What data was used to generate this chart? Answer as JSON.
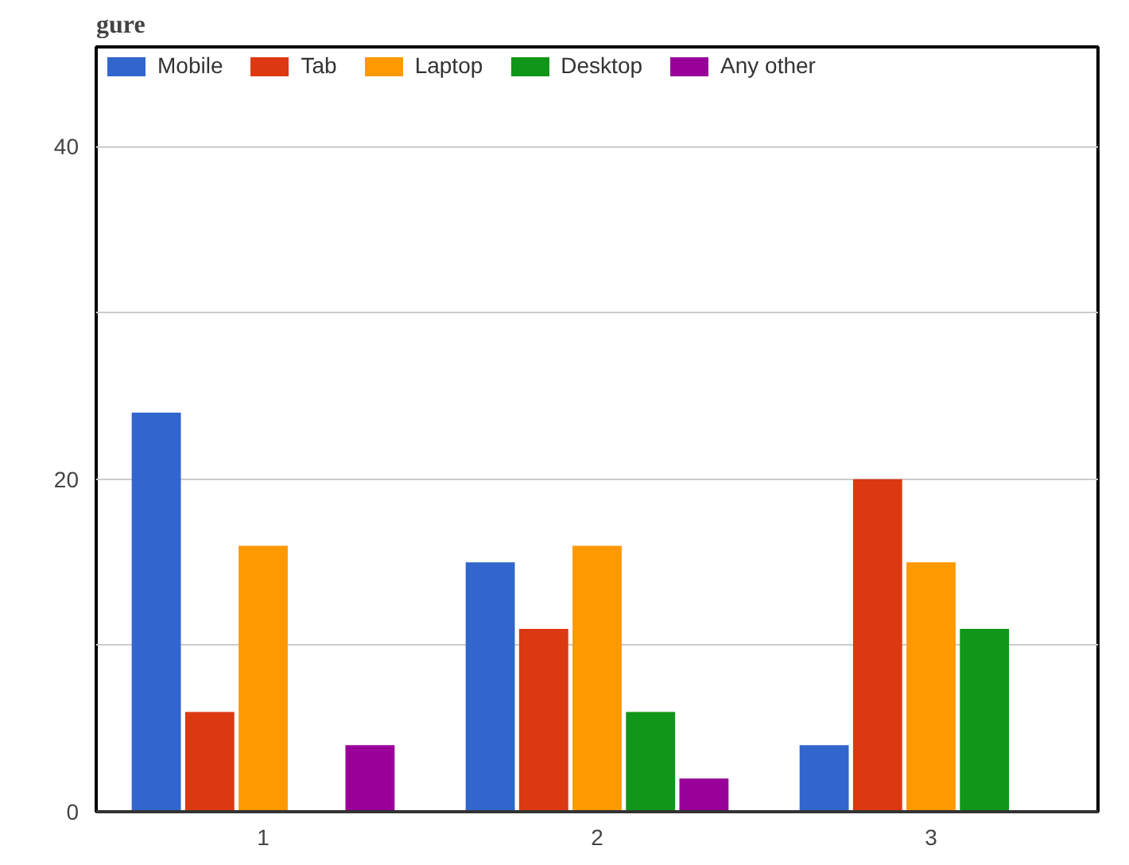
{
  "chart_data": {
    "type": "bar",
    "annotations": [
      "gure"
    ],
    "categories": [
      "1",
      "2",
      "3"
    ],
    "series": [
      {
        "name": "Mobile",
        "color": "#3366cc",
        "values": [
          24,
          15,
          4
        ]
      },
      {
        "name": "Tab",
        "color": "#dc3912",
        "values": [
          6,
          11,
          20
        ]
      },
      {
        "name": "Laptop",
        "color": "#ff9900",
        "values": [
          16,
          16,
          15
        ]
      },
      {
        "name": "Desktop",
        "color": "#109618",
        "values": [
          0,
          6,
          11
        ]
      },
      {
        "name": "Any other",
        "color": "#990099",
        "values": [
          4,
          2,
          0
        ]
      }
    ],
    "ylim": [
      0,
      46
    ],
    "yticks": [
      0,
      {
        "value": 10,
        "label": null
      },
      20,
      {
        "value": 30,
        "label": null
      },
      40
    ],
    "grid": "y",
    "legend": "top"
  }
}
